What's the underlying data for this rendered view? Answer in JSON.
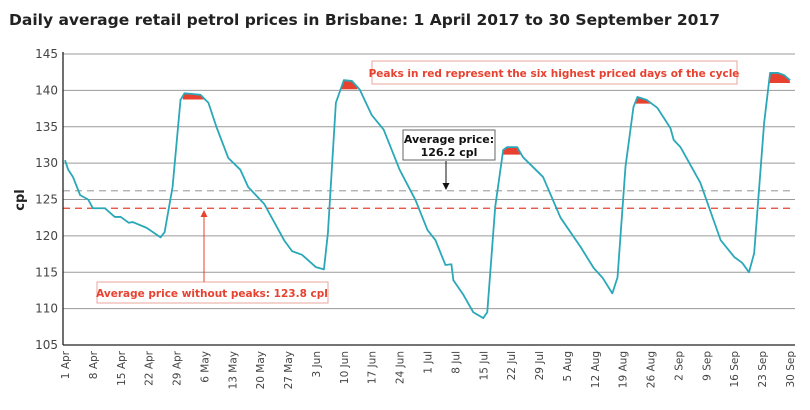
{
  "chart_data": {
    "type": "line",
    "title": "Daily average retail petrol prices in Brisbane: 1 April 2017 to 30 September 2017",
    "xlabel": "",
    "ylabel": "cpl",
    "ylim": [
      105,
      145
    ],
    "yticks": [
      105,
      110,
      115,
      120,
      125,
      130,
      135,
      140,
      145
    ],
    "grid": true,
    "x_range_days": [
      0,
      182
    ],
    "xtick_labels": [
      "1 Apr",
      "8 Apr",
      "15 Apr",
      "22 Apr",
      "29 Apr",
      "6 May",
      "13 May",
      "20 May",
      "27 May",
      "3 Jun",
      "10 Jun",
      "17 Jun",
      "24 Jun",
      "1 Jul",
      "8 Jul",
      "15 Jul",
      "22 Jul",
      "29 Jul",
      "5 Aug",
      "12 Aug",
      "19 Aug",
      "26 Aug",
      "2 Sep",
      "9 Sep",
      "16 Sep",
      "23 Sep",
      "30 Sep"
    ],
    "series": [
      {
        "name": "Daily average retail petrol price",
        "color": "#2aa8b8",
        "points_day_value": [
          [
            0,
            130.4
          ],
          [
            0.8,
            129.1
          ],
          [
            2,
            128.1
          ],
          [
            3.8,
            125.6
          ],
          [
            5.8,
            125.0
          ],
          [
            7,
            123.8
          ],
          [
            10,
            123.8
          ],
          [
            12.5,
            122.6
          ],
          [
            14,
            122.6
          ],
          [
            16,
            121.8
          ],
          [
            17,
            121.9
          ],
          [
            20.5,
            121.1
          ],
          [
            24,
            119.8
          ],
          [
            25,
            120.5
          ],
          [
            27,
            126.7
          ],
          [
            29,
            138.7
          ],
          [
            30,
            139.6
          ],
          [
            34,
            139.4
          ],
          [
            36,
            138.3
          ],
          [
            38,
            135.0
          ],
          [
            41,
            130.7
          ],
          [
            44,
            129.1
          ],
          [
            46,
            126.7
          ],
          [
            50,
            124.4
          ],
          [
            55,
            119.4
          ],
          [
            57,
            117.9
          ],
          [
            59.5,
            117.4
          ],
          [
            63,
            115.7
          ],
          [
            65,
            115.4
          ],
          [
            66,
            120.4
          ],
          [
            68,
            138.3
          ],
          [
            70,
            141.4
          ],
          [
            72,
            141.3
          ],
          [
            74,
            140.1
          ],
          [
            77,
            136.6
          ],
          [
            80,
            134.6
          ],
          [
            84,
            129.1
          ],
          [
            88,
            124.9
          ],
          [
            91,
            120.8
          ],
          [
            93,
            119.4
          ],
          [
            95.5,
            116.0
          ],
          [
            97,
            116.1
          ],
          [
            97.5,
            113.9
          ],
          [
            100,
            111.9
          ],
          [
            102.5,
            109.5
          ],
          [
            105,
            108.7
          ],
          [
            106,
            109.5
          ],
          [
            108,
            124.0
          ],
          [
            110,
            131.8
          ],
          [
            111,
            132.2
          ],
          [
            113.5,
            132.2
          ],
          [
            115,
            130.8
          ],
          [
            120,
            128.1
          ],
          [
            124.4,
            122.5
          ],
          [
            129.4,
            118.5
          ],
          [
            132.7,
            115.6
          ],
          [
            135,
            114.2
          ],
          [
            137.4,
            112.1
          ],
          [
            138.7,
            114.3
          ],
          [
            140.7,
            129.5
          ],
          [
            142.7,
            137.7
          ],
          [
            143.7,
            139.1
          ],
          [
            146,
            138.7
          ],
          [
            148.7,
            137.6
          ],
          [
            152,
            134.8
          ],
          [
            152.8,
            133.2
          ],
          [
            154.5,
            132.2
          ],
          [
            159.5,
            127.3
          ],
          [
            164.6,
            119.4
          ],
          [
            168,
            117.1
          ],
          [
            170,
            116.3
          ],
          [
            171.7,
            115.0
          ],
          [
            173,
            117.6
          ],
          [
            175.5,
            135.5
          ],
          [
            177,
            142.4
          ],
          [
            179,
            142.4
          ],
          [
            180.5,
            142.1
          ],
          [
            182,
            141.4
          ]
        ]
      }
    ],
    "peaks_day_ranges": [
      [
        29.6,
        35.2
      ],
      [
        69.2,
        73.4
      ],
      [
        110,
        114.6
      ],
      [
        143.3,
        147.3
      ],
      [
        176.7,
        182
      ]
    ],
    "peak_color": "#e8412f",
    "reference_lines": [
      {
        "name": "Average price",
        "value": 126.2,
        "color": "#aaaaaa",
        "style": "dashed"
      },
      {
        "name": "Average price without peaks",
        "value": 123.8,
        "color": "#e8412f",
        "style": "dashed"
      }
    ],
    "annotations": {
      "peaks_note": "Peaks in red represent the six highest priced days of the cycle",
      "avg_price_line1": "Average price:",
      "avg_price_line2": "126.2 cpl",
      "avg_no_peaks": "Average price without peaks: 123.8 cpl"
    },
    "legend": "none"
  }
}
